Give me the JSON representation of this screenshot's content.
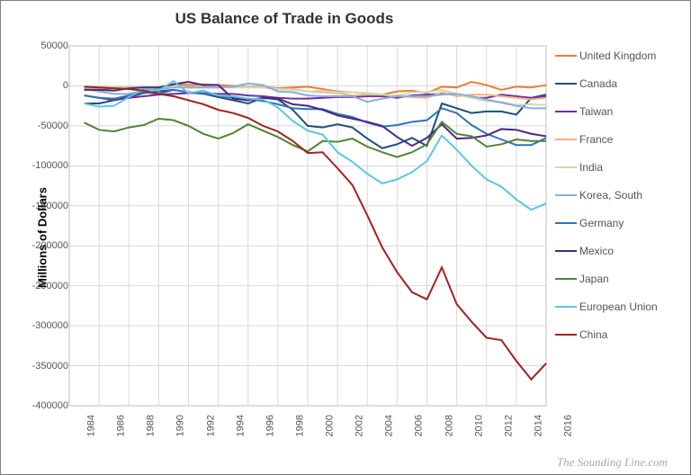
{
  "chart": {
    "type": "line",
    "title": "US Balance of Trade in Goods",
    "ylabel": "Millions of Dollars",
    "source": "The Sounding Line.com",
    "background_color": "#ffffff",
    "border_color": "#808080",
    "grid_color": "#d9d9d9",
    "grid_width": 1,
    "line_width": 2,
    "title_fontsize": 17,
    "label_fontsize": 13,
    "tick_fontsize": 11,
    "legend_fontsize": 12,
    "ylim": [
      -400000,
      50000
    ],
    "ytick_step": 50000,
    "xlim": [
      1984,
      2016
    ],
    "xtick_step": 2,
    "years": [
      1985,
      1986,
      1987,
      1988,
      1989,
      1990,
      1991,
      1992,
      1993,
      1994,
      1995,
      1996,
      1997,
      1998,
      1999,
      2000,
      2001,
      2002,
      2003,
      2004,
      2005,
      2006,
      2007,
      2008,
      2009,
      2010,
      2011,
      2012,
      2013,
      2014,
      2015,
      2016
    ],
    "series": [
      {
        "name": "United Kingdom",
        "color": "#ed7d31",
        "values": [
          -4000,
          -4000,
          -3000,
          -2000,
          -2000,
          -2000,
          2000,
          1000,
          2000,
          1000,
          0,
          -1000,
          -1000,
          -3000,
          -2000,
          -1000,
          -4000,
          -7000,
          -8000,
          -9000,
          -11000,
          -7000,
          -6000,
          -9000,
          -1000,
          -2000,
          5000,
          1000,
          -5000,
          -1000,
          -2000,
          1000
        ]
      },
      {
        "name": "Canada",
        "color": "#1f4e79",
        "values": [
          -22000,
          -22000,
          -18000,
          -14000,
          -9000,
          -7000,
          -5000,
          -8000,
          -10000,
          -14000,
          -18000,
          -22000,
          -15000,
          -17000,
          -30000,
          -50000,
          -52000,
          -48000,
          -52000,
          -66000,
          -78000,
          -73000,
          -65000,
          -75000,
          -22000,
          -28000,
          -34000,
          -32000,
          -32000,
          -36000,
          -15000,
          -11000
        ]
      },
      {
        "name": "Taiwan",
        "color": "#7030a0",
        "values": [
          -12000,
          -15000,
          -18000,
          -15000,
          -13000,
          -11000,
          -10000,
          -9000,
          -9000,
          -10000,
          -10000,
          -12000,
          -13000,
          -15000,
          -16000,
          -16000,
          -15000,
          -14000,
          -14000,
          -13000,
          -13000,
          -15000,
          -12000,
          -11000,
          -10000,
          -10000,
          -15000,
          -15000,
          -11000,
          -13000,
          -15000,
          -13000
        ]
      },
      {
        "name": "France",
        "color": "#f4b183",
        "values": [
          -3000,
          -3000,
          -2000,
          -1000,
          -1000,
          -2000,
          -1000,
          -1000,
          -1000,
          -2000,
          -1000,
          -1000,
          -2000,
          -4000,
          -4000,
          -7000,
          -8000,
          -9000,
          -12000,
          -11000,
          -11000,
          -13000,
          -14000,
          -15000,
          -8000,
          -13000,
          -11000,
          -11000,
          -13000,
          -15000,
          -17000,
          -15000
        ]
      },
      {
        "name": "India",
        "color": "#c5e0b4",
        "values": [
          -1000,
          -1000,
          -1000,
          -1000,
          -1000,
          -1000,
          -1000,
          -2000,
          -2000,
          -2000,
          -2000,
          -2000,
          -2000,
          -4000,
          -5000,
          -7000,
          -6000,
          -8000,
          -8000,
          -9000,
          -11000,
          -12000,
          -8000,
          -8000,
          -5000,
          -10000,
          -15000,
          -19000,
          -20000,
          -24000,
          -23000,
          -24000
        ]
      },
      {
        "name": "Korea, South",
        "color": "#8faadc",
        "values": [
          -4000,
          -7000,
          -10000,
          -10000,
          -6000,
          -4000,
          -2000,
          -2000,
          -2000,
          -2000,
          -1000,
          3000,
          1000,
          -7000,
          -8000,
          -12000,
          -13000,
          -13000,
          -13000,
          -20000,
          -16000,
          -13000,
          -13000,
          -13000,
          -11000,
          -10000,
          -13000,
          -17000,
          -21000,
          -25000,
          -28000,
          -28000
        ]
      },
      {
        "name": "Germany",
        "color": "#2e75b6",
        "values": [
          -12000,
          -15000,
          -16000,
          -12000,
          -8000,
          -10000,
          -5000,
          -8000,
          -10000,
          -12000,
          -15000,
          -16000,
          -19000,
          -23000,
          -28000,
          -29000,
          -29000,
          -35000,
          -39000,
          -46000,
          -51000,
          -49000,
          -45000,
          -43000,
          -28000,
          -34000,
          -49000,
          -60000,
          -67000,
          -74000,
          -74000,
          -65000
        ]
      },
      {
        "name": "Mexico",
        "color": "#4c2882",
        "values": [
          -5000,
          -5000,
          -6000,
          -3000,
          -2000,
          -2000,
          2000,
          5000,
          1000,
          1000,
          -16000,
          -18000,
          -15000,
          -16000,
          -23000,
          -25000,
          -30000,
          -37000,
          -41000,
          -45000,
          -50000,
          -64000,
          -75000,
          -65000,
          -48000,
          -66000,
          -65000,
          -62000,
          -54000,
          -55000,
          -60000,
          -63000
        ]
      },
      {
        "name": "Japan",
        "color": "#548235",
        "values": [
          -46000,
          -55000,
          -57000,
          -52000,
          -49000,
          -41000,
          -43000,
          -50000,
          -60000,
          -66000,
          -59000,
          -48000,
          -56000,
          -64000,
          -74000,
          -82000,
          -69000,
          -70000,
          -66000,
          -76000,
          -83000,
          -89000,
          -83000,
          -73000,
          -45000,
          -60000,
          -63000,
          -76000,
          -73000,
          -67000,
          -69000,
          -69000
        ]
      },
      {
        "name": "European Union",
        "color": "#5ec5e0",
        "values": [
          -22000,
          -26000,
          -25000,
          -14000,
          -4000,
          -6000,
          6000,
          -9000,
          -6000,
          -12000,
          -13000,
          -16000,
          -17000,
          -27000,
          -44000,
          -56000,
          -61000,
          -83000,
          -95000,
          -110000,
          -122000,
          -117000,
          -108000,
          -94000,
          -62000,
          -80000,
          -100000,
          -117000,
          -126000,
          -142000,
          -155000,
          -147000
        ]
      },
      {
        "name": "China",
        "color": "#a42020",
        "values": [
          -1000,
          -2000,
          -3000,
          -4000,
          -6000,
          -10000,
          -13000,
          -18000,
          -23000,
          -30000,
          -34000,
          -40000,
          -50000,
          -57000,
          -69000,
          -84000,
          -83000,
          -103000,
          -124000,
          -162000,
          -202000,
          -233000,
          -258000,
          -267000,
          -227000,
          -273000,
          -295000,
          -315000,
          -318000,
          -344000,
          -367000,
          -347000
        ]
      }
    ]
  }
}
